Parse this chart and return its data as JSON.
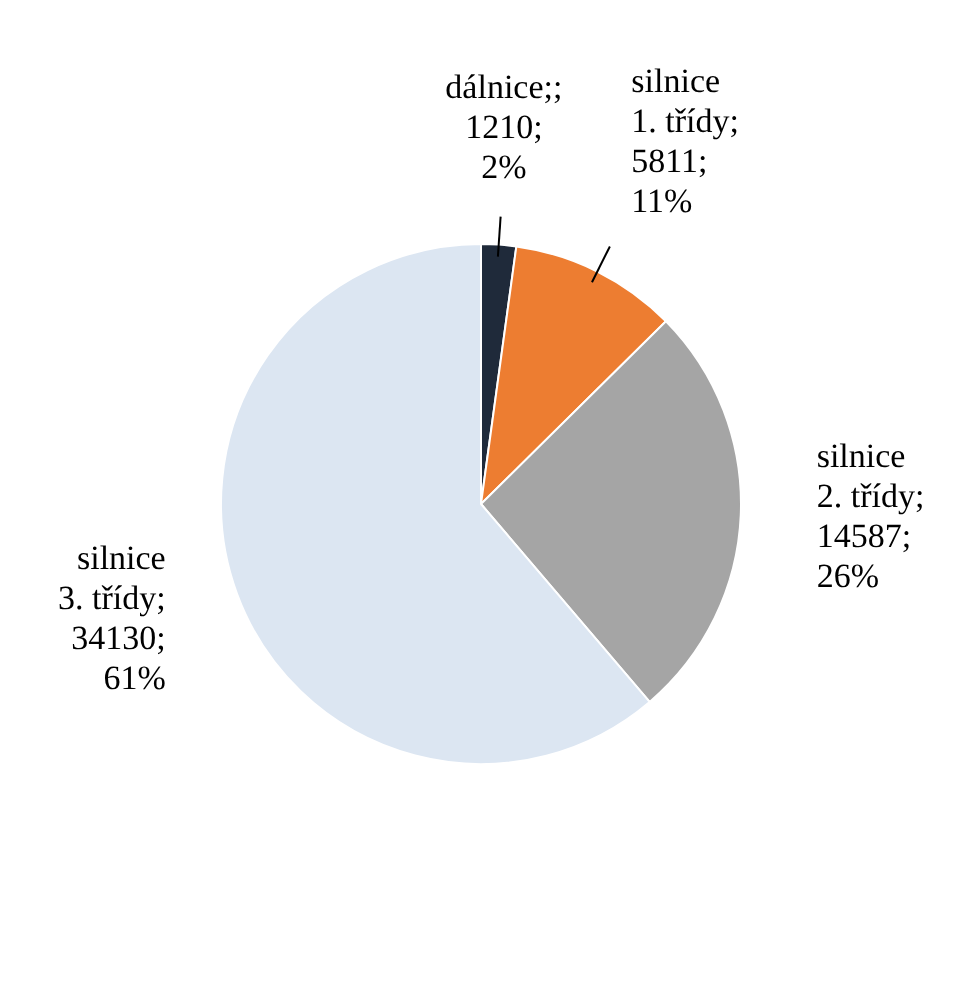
{
  "chart_data": {
    "type": "pie",
    "categories": [
      "dálnice",
      "silnice 1. třídy",
      "silnice 2. třídy",
      "silnice 3. třídy"
    ],
    "values": [
      1210,
      5811,
      14587,
      34130
    ],
    "colors": [
      "#1f2a3a",
      "#ed7d31",
      "#a5a5a5",
      "#dce6f2"
    ],
    "value_labels": [
      ";; 1210; 2%",
      "; 5811; 11%",
      "; 14587; 26%",
      "; 34130; 61%"
    ],
    "legend": false
  }
}
